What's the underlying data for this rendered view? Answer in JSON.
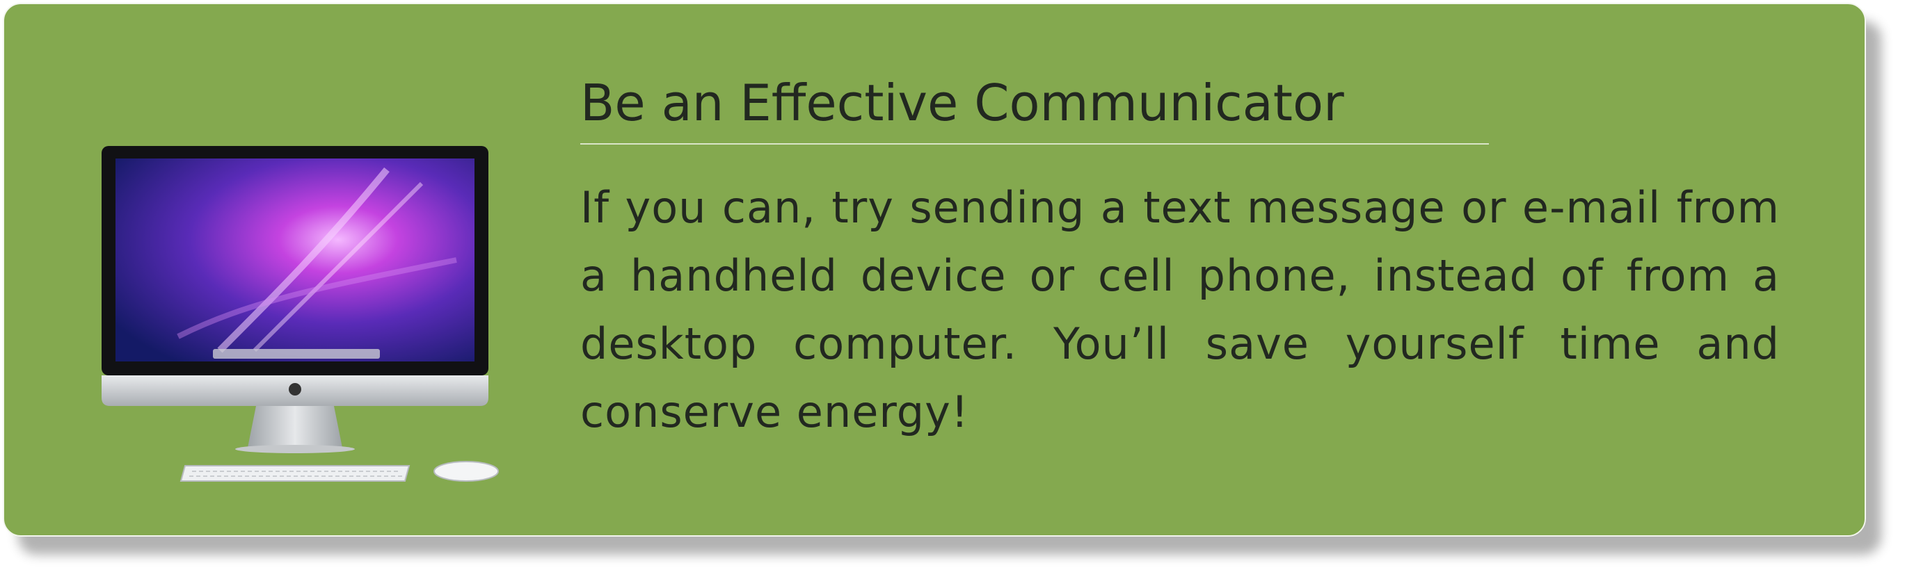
{
  "card": {
    "heading": "Be an Effective Communicator",
    "body": "If you can, try sending a text message or e-mail from a handheld device or cell phone, instead of from a desktop computer. You’ll save yourself time and conserve energy!",
    "background_color": "#84a94f",
    "illustration": "desktop-computer-icon"
  }
}
